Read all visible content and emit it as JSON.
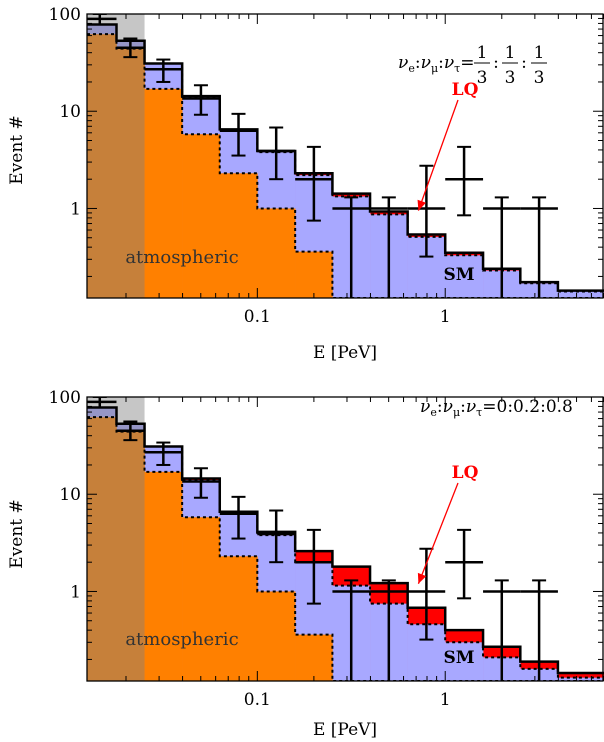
{
  "chart_data": [
    {
      "type": "histogram",
      "panel": "top",
      "xlabel": "E [PeV]",
      "ylabel": "Event #",
      "xscale": "log",
      "yscale": "log",
      "xlim": [
        0.0124,
        7.0
      ],
      "ylim": [
        0.12,
        100
      ],
      "xticks": [
        {
          "value": 0.1,
          "label": "0.1"
        },
        {
          "value": 1,
          "label": "1"
        }
      ],
      "yticks": [
        {
          "value": 1,
          "label": "1"
        },
        {
          "value": 10,
          "label": "10"
        },
        {
          "value": 100,
          "label": "100"
        }
      ],
      "bin_edges": [
        0.0124,
        0.0178,
        0.0251,
        0.0398,
        0.0631,
        0.1,
        0.159,
        0.251,
        0.398,
        0.631,
        1.0,
        1.59,
        2.51,
        3.98,
        7.0
      ],
      "series": [
        {
          "name": "atmospheric",
          "color": "#ff8000",
          "values": [
            62,
            44,
            17,
            5.8,
            2.3,
            1.0,
            0.36,
            0.12,
            0.12,
            0.12,
            0.12,
            0.12,
            0.12,
            0.12
          ]
        },
        {
          "name": "SM",
          "color": "#a8a8ff",
          "values": [
            78,
            53,
            31,
            14,
            6.3,
            3.8,
            2.2,
            1.33,
            0.87,
            0.51,
            0.33,
            0.23,
            0.17,
            0.14
          ]
        },
        {
          "name": "LQ",
          "color": "#ff0000",
          "values": [
            78,
            53,
            31,
            14.3,
            6.5,
            3.9,
            2.3,
            1.42,
            0.93,
            0.54,
            0.35,
            0.24,
            0.175,
            0.143
          ]
        }
      ],
      "data_points": [
        {
          "x": 0.0145,
          "y": 89,
          "ylo": 78,
          "yhi": 100,
          "xlo": 0.0124,
          "xhi": 0.0178
        },
        {
          "x": 0.0211,
          "y": 45,
          "ylo": 36,
          "yhi": 56,
          "xlo": 0.0178,
          "xhi": 0.0251
        },
        {
          "x": 0.0316,
          "y": 27,
          "ylo": 20,
          "yhi": 34,
          "xlo": 0.0251,
          "xhi": 0.0398
        },
        {
          "x": 0.0501,
          "y": 13.5,
          "ylo": 9.2,
          "yhi": 18.5,
          "xlo": 0.0398,
          "xhi": 0.0631
        },
        {
          "x": 0.0794,
          "y": 6.3,
          "ylo": 3.5,
          "yhi": 9.4,
          "xlo": 0.0631,
          "xhi": 0.1
        },
        {
          "x": 0.126,
          "y": 3.9,
          "ylo": 2.0,
          "yhi": 6.8,
          "xlo": 0.1,
          "xhi": 0.159
        },
        {
          "x": 0.2,
          "y": 2.0,
          "ylo": 0.75,
          "yhi": 4.3,
          "xlo": 0.159,
          "xhi": 0.251
        },
        {
          "x": 0.316,
          "y": 1.0,
          "ylo": 0.12,
          "yhi": 1.3,
          "xlo": 0.251,
          "xhi": 0.398
        },
        {
          "x": 0.501,
          "y": 1.0,
          "ylo": 0.12,
          "yhi": 1.3,
          "xlo": 0.398,
          "xhi": 0.631
        },
        {
          "x": 0.794,
          "y": 1.0,
          "ylo": 0.32,
          "yhi": 2.75,
          "xlo": 0.631,
          "xhi": 1.0
        },
        {
          "x": 1.26,
          "y": 2.0,
          "ylo": 0.85,
          "yhi": 4.3,
          "xlo": 1.0,
          "xhi": 1.59
        },
        {
          "x": 2.0,
          "y": 1.0,
          "ylo": 0.12,
          "yhi": 1.3,
          "xlo": 1.59,
          "xhi": 2.51
        },
        {
          "x": 3.16,
          "y": 1.0,
          "ylo": 0.12,
          "yhi": 1.3,
          "xlo": 2.51,
          "xhi": 3.98
        }
      ],
      "shaded_region_xmax": 0.0251,
      "annotations": {
        "atmospheric": "atmospheric",
        "sm": "SM",
        "lq": "LQ",
        "flavor_ratio": "νe:νμ:ντ = 1/3:1/3:1/3"
      }
    },
    {
      "type": "histogram",
      "panel": "bottom",
      "xlabel": "E [PeV]",
      "ylabel": "Event #",
      "xscale": "log",
      "yscale": "log",
      "xlim": [
        0.0124,
        7.0
      ],
      "ylim": [
        0.12,
        100
      ],
      "xticks": [
        {
          "value": 0.1,
          "label": "0.1"
        },
        {
          "value": 1,
          "label": "1"
        }
      ],
      "yticks": [
        {
          "value": 1,
          "label": "1"
        },
        {
          "value": 10,
          "label": "10"
        },
        {
          "value": 100,
          "label": "100"
        }
      ],
      "bin_edges": [
        0.0124,
        0.0178,
        0.0251,
        0.0398,
        0.0631,
        0.1,
        0.159,
        0.251,
        0.398,
        0.631,
        1.0,
        1.59,
        2.51,
        3.98,
        7.0
      ],
      "series": [
        {
          "name": "atmospheric",
          "color": "#ff8000",
          "values": [
            62,
            44,
            17,
            5.8,
            2.3,
            1.0,
            0.36,
            0.12,
            0.12,
            0.12,
            0.12,
            0.12,
            0.12,
            0.12
          ]
        },
        {
          "name": "SM",
          "color": "#a8a8ff",
          "values": [
            78,
            53,
            31,
            14,
            6.3,
            3.8,
            2.0,
            1.15,
            0.75,
            0.46,
            0.3,
            0.21,
            0.16,
            0.13
          ]
        },
        {
          "name": "LQ",
          "color": "#ff0000",
          "values": [
            78,
            53,
            31,
            14.5,
            6.6,
            4.1,
            2.6,
            1.8,
            1.22,
            0.68,
            0.4,
            0.27,
            0.19,
            0.145
          ]
        }
      ],
      "data_points": [
        {
          "x": 0.0145,
          "y": 89,
          "ylo": 78,
          "yhi": 100,
          "xlo": 0.0124,
          "xhi": 0.0178
        },
        {
          "x": 0.0211,
          "y": 45,
          "ylo": 36,
          "yhi": 56,
          "xlo": 0.0178,
          "xhi": 0.0251
        },
        {
          "x": 0.0316,
          "y": 27,
          "ylo": 20,
          "yhi": 34,
          "xlo": 0.0251,
          "xhi": 0.0398
        },
        {
          "x": 0.0501,
          "y": 13.5,
          "ylo": 9.2,
          "yhi": 18.5,
          "xlo": 0.0398,
          "xhi": 0.0631
        },
        {
          "x": 0.0794,
          "y": 6.3,
          "ylo": 3.5,
          "yhi": 9.4,
          "xlo": 0.0631,
          "xhi": 0.1
        },
        {
          "x": 0.126,
          "y": 3.9,
          "ylo": 2.0,
          "yhi": 6.8,
          "xlo": 0.1,
          "xhi": 0.159
        },
        {
          "x": 0.2,
          "y": 2.0,
          "ylo": 0.75,
          "yhi": 4.3,
          "xlo": 0.159,
          "xhi": 0.251
        },
        {
          "x": 0.316,
          "y": 1.0,
          "ylo": 0.12,
          "yhi": 1.3,
          "xlo": 0.251,
          "xhi": 0.398
        },
        {
          "x": 0.501,
          "y": 1.0,
          "ylo": 0.12,
          "yhi": 1.3,
          "xlo": 0.398,
          "xhi": 0.631
        },
        {
          "x": 0.794,
          "y": 1.0,
          "ylo": 0.32,
          "yhi": 2.75,
          "xlo": 0.631,
          "xhi": 1.0
        },
        {
          "x": 1.26,
          "y": 2.0,
          "ylo": 0.85,
          "yhi": 4.3,
          "xlo": 1.0,
          "xhi": 1.59
        },
        {
          "x": 2.0,
          "y": 1.0,
          "ylo": 0.12,
          "yhi": 1.3,
          "xlo": 1.59,
          "xhi": 2.51
        },
        {
          "x": 3.16,
          "y": 1.0,
          "ylo": 0.12,
          "yhi": 1.3,
          "xlo": 2.51,
          "xhi": 3.98
        }
      ],
      "shaded_region_xmax": 0.0251,
      "annotations": {
        "atmospheric": "atmospheric",
        "sm": "SM",
        "lq": "LQ",
        "flavor_ratio": "νe:νμ:ντ=0:0.2:0.8"
      }
    }
  ],
  "labels": {
    "top": {
      "xlabel": "E [PeV]",
      "ylabel": "Event #",
      "atmospheric": "atmospheric",
      "sm": "SM",
      "lq": "LQ",
      "nu": "ν",
      "e": "e",
      "mu": "μ",
      "tau": "τ",
      "colon": ":",
      "equals": "=",
      "one": "1",
      "three": "3"
    },
    "bottom": {
      "xlabel": "E [PeV]",
      "ylabel": "Event #",
      "atmospheric": "atmospheric",
      "sm": "SM",
      "lq": "LQ",
      "nu": "ν",
      "e": "e",
      "mu": "μ",
      "tau": "τ",
      "colon": ":",
      "ratio_values": "=0:0.2:0.8"
    }
  }
}
